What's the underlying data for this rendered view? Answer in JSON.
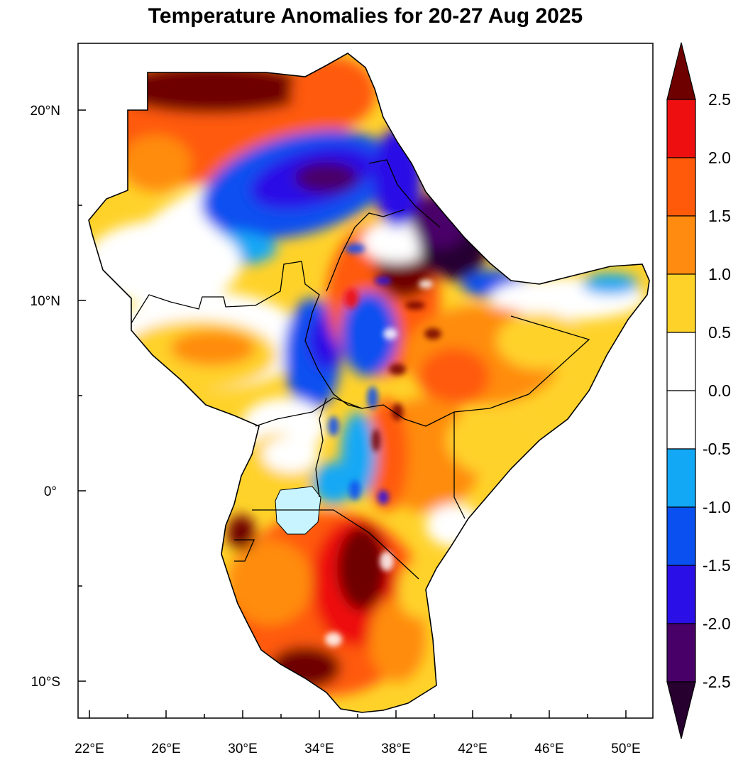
{
  "title": "Temperature Anomalies for 20-27 Aug 2025",
  "map": {
    "lon_labels": [
      "22°E",
      "26°E",
      "30°E",
      "34°E",
      "38°E",
      "42°E",
      "46°E",
      "50°E"
    ],
    "lat_labels": [
      "20°N",
      "10°N",
      "0°",
      "10°S"
    ],
    "lon_range": [
      21.5,
      51.5
    ],
    "lat_range": [
      -11.8,
      23.5
    ],
    "lake_color": "#c8f4ff"
  },
  "colorbar": {
    "levels": [
      "2.5",
      "2.0",
      "1.5",
      "1.0",
      "0.5",
      "0.0",
      "-0.5",
      "-1.0",
      "-1.5",
      "-2.0",
      "-2.5"
    ],
    "colors_top_to_bottom": [
      "#6e0000",
      "#ee1010",
      "#ff5a0a",
      "#ff8c10",
      "#ffd22a",
      "#ffffff",
      "#ffffff",
      "#12a8f5",
      "#0a50f0",
      "#2a10e6",
      "#480068",
      "#280030"
    ],
    "extend": "both"
  }
}
